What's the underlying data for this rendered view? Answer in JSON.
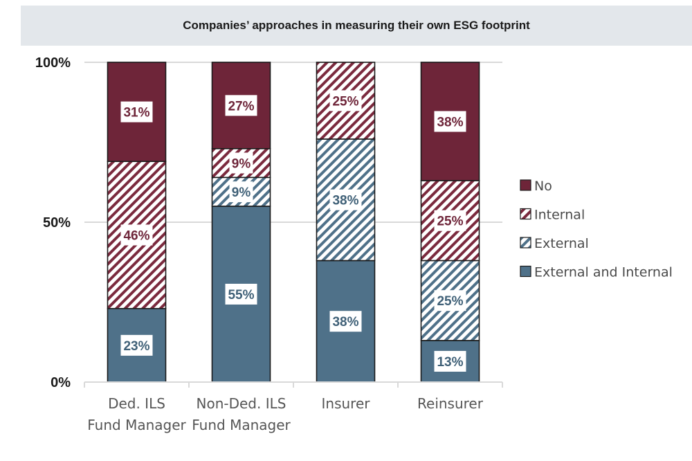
{
  "chart_data": {
    "type": "bar",
    "stacked": true,
    "title": "Companies’ approaches in measuring their own ESG footprint",
    "categories": [
      [
        "Ded. ILS",
        "Fund Manager"
      ],
      [
        "Non-Ded. ILS",
        "Fund Manager"
      ],
      [
        "Insurer"
      ],
      [
        "Reinsurer"
      ]
    ],
    "ylim": [
      0,
      100
    ],
    "yticks": [
      "0%",
      "50%",
      "100%"
    ],
    "ytick_values": [
      0,
      50,
      100
    ],
    "grid": true,
    "legend_position": "right",
    "series": [
      {
        "name": "External and Internal",
        "values": [
          23,
          55,
          38,
          13
        ],
        "labels": [
          "23%",
          "55%",
          "38%",
          "13%"
        ],
        "color": "#4f7189",
        "pattern": "solid"
      },
      {
        "name": "External",
        "values": [
          0,
          9,
          38,
          25
        ],
        "labels": [
          "",
          "9%",
          "38%",
          "25%"
        ],
        "color": "#4f7189",
        "pattern": "hatched"
      },
      {
        "name": "Internal",
        "values": [
          46,
          9,
          25,
          25
        ],
        "labels": [
          "46%",
          "9%",
          "25%",
          "25%"
        ],
        "color": "#7b2a3e",
        "pattern": "hatched"
      },
      {
        "name": "No",
        "values": [
          31,
          27,
          0,
          38
        ],
        "labels": [
          "31%",
          "27%",
          "",
          "38%"
        ],
        "color": "#6e2539",
        "pattern": "solid"
      }
    ],
    "legend_order": [
      "No",
      "Internal",
      "External",
      "External and Internal"
    ]
  }
}
